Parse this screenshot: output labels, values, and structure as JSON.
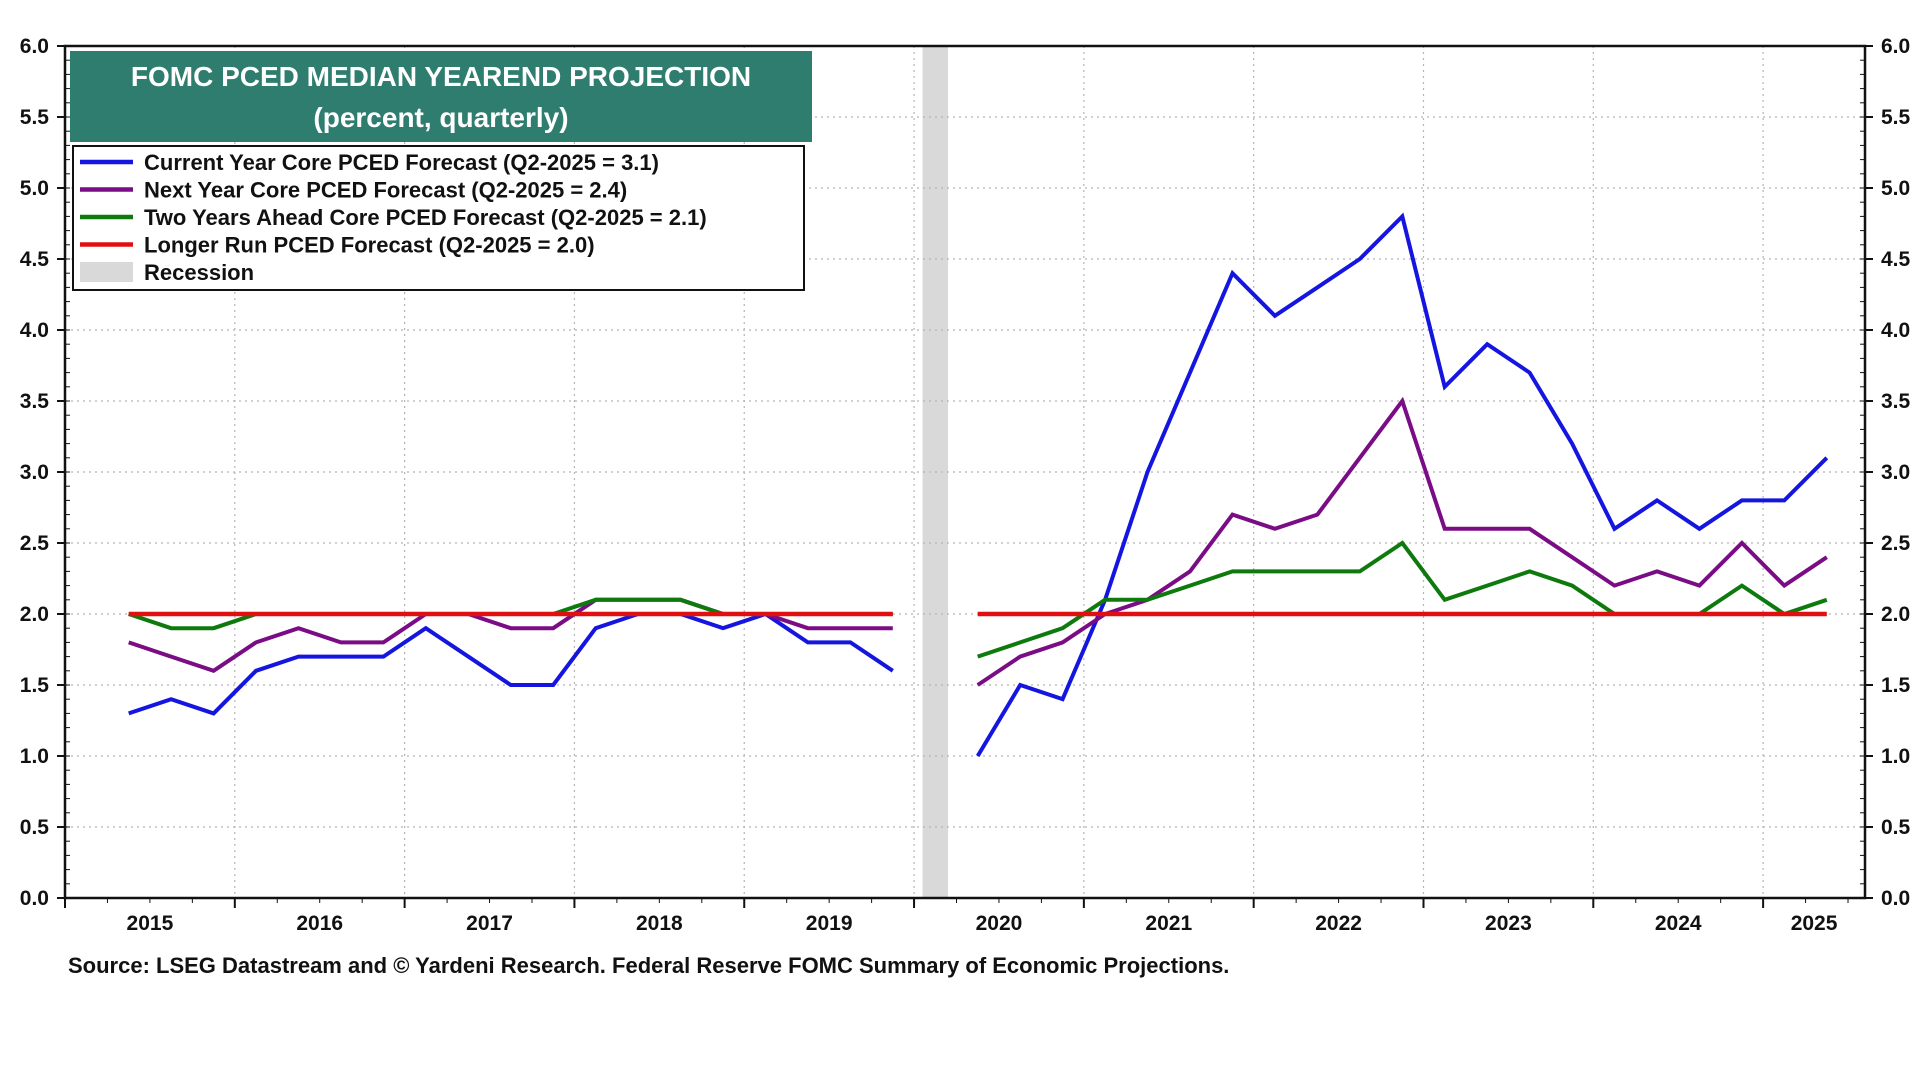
{
  "chart_data": {
    "type": "line",
    "title": "FOMC PCED MEDIAN YEAREND PROJECTION",
    "subtitle": "(percent, quarterly)",
    "ylim": [
      0,
      6
    ],
    "yticks": [
      "0.0",
      "0.5",
      "1.0",
      "1.5",
      "2.0",
      "2.5",
      "3.0",
      "3.5",
      "4.0",
      "4.5",
      "5.0",
      "5.5",
      "6.0"
    ],
    "xlim": [
      2015.0,
      2025.6
    ],
    "x_tick_labels": [
      {
        "year": 2015,
        "label": "2015"
      },
      {
        "year": 2016,
        "label": "2016"
      },
      {
        "year": 2017,
        "label": "2017"
      },
      {
        "year": 2018,
        "label": "2018"
      },
      {
        "year": 2019,
        "label": "2019"
      },
      {
        "year": 2020,
        "label": "2020"
      },
      {
        "year": 2021,
        "label": "2021"
      },
      {
        "year": 2022,
        "label": "2022"
      },
      {
        "year": 2023,
        "label": "2023"
      },
      {
        "year": 2024,
        "label": "2024"
      },
      {
        "year": 2025,
        "label": "2025"
      }
    ],
    "recession": {
      "start": 2020.05,
      "end": 2020.2,
      "label": "Recession",
      "color": "#d9d9d9"
    },
    "series": [
      {
        "name": "Current Year Core PCED Forecast (Q2-2025 = 3.1)",
        "color": "#1515e0",
        "segments": [
          [
            [
              2015.375,
              1.3
            ],
            [
              2015.625,
              1.4
            ],
            [
              2015.875,
              1.3
            ],
            [
              2016.125,
              1.6
            ],
            [
              2016.375,
              1.7
            ],
            [
              2016.625,
              1.7
            ],
            [
              2016.875,
              1.7
            ],
            [
              2017.125,
              1.9
            ],
            [
              2017.375,
              1.7
            ],
            [
              2017.625,
              1.5
            ],
            [
              2017.875,
              1.5
            ],
            [
              2018.125,
              1.9
            ],
            [
              2018.375,
              2.0
            ],
            [
              2018.625,
              2.0
            ],
            [
              2018.875,
              1.9
            ],
            [
              2019.125,
              2.0
            ],
            [
              2019.375,
              1.8
            ],
            [
              2019.625,
              1.8
            ],
            [
              2019.875,
              1.6
            ]
          ],
          [
            [
              2020.375,
              1.0
            ],
            [
              2020.625,
              1.5
            ],
            [
              2020.875,
              1.4
            ],
            [
              2021.125,
              2.1
            ],
            [
              2021.375,
              3.0
            ],
            [
              2021.625,
              3.7
            ],
            [
              2021.875,
              4.4
            ],
            [
              2022.125,
              4.1
            ],
            [
              2022.375,
              4.3
            ],
            [
              2022.625,
              4.5
            ],
            [
              2022.875,
              4.8
            ],
            [
              2023.125,
              3.6
            ],
            [
              2023.375,
              3.9
            ],
            [
              2023.625,
              3.7
            ],
            [
              2023.875,
              3.2
            ],
            [
              2024.125,
              2.6
            ],
            [
              2024.375,
              2.8
            ],
            [
              2024.625,
              2.6
            ],
            [
              2024.875,
              2.8
            ],
            [
              2025.125,
              2.8
            ],
            [
              2025.375,
              3.1
            ]
          ]
        ]
      },
      {
        "name": "Next Year Core PCED Forecast (Q2-2025 = 2.4)",
        "color": "#7a0d85",
        "segments": [
          [
            [
              2015.375,
              1.8
            ],
            [
              2015.625,
              1.7
            ],
            [
              2015.875,
              1.6
            ],
            [
              2016.125,
              1.8
            ],
            [
              2016.375,
              1.9
            ],
            [
              2016.625,
              1.8
            ],
            [
              2016.875,
              1.8
            ],
            [
              2017.125,
              2.0
            ],
            [
              2017.375,
              2.0
            ],
            [
              2017.625,
              1.9
            ],
            [
              2017.875,
              1.9
            ],
            [
              2018.125,
              2.1
            ],
            [
              2018.375,
              2.1
            ],
            [
              2018.625,
              2.1
            ],
            [
              2018.875,
              2.0
            ],
            [
              2019.125,
              2.0
            ],
            [
              2019.375,
              1.9
            ],
            [
              2019.625,
              1.9
            ],
            [
              2019.875,
              1.9
            ]
          ],
          [
            [
              2020.375,
              1.5
            ],
            [
              2020.625,
              1.7
            ],
            [
              2020.875,
              1.8
            ],
            [
              2021.125,
              2.0
            ],
            [
              2021.375,
              2.1
            ],
            [
              2021.625,
              2.3
            ],
            [
              2021.875,
              2.7
            ],
            [
              2022.125,
              2.6
            ],
            [
              2022.375,
              2.7
            ],
            [
              2022.625,
              3.1
            ],
            [
              2022.875,
              3.5
            ],
            [
              2023.125,
              2.6
            ],
            [
              2023.375,
              2.6
            ],
            [
              2023.625,
              2.6
            ],
            [
              2023.875,
              2.4
            ],
            [
              2024.125,
              2.2
            ],
            [
              2024.375,
              2.3
            ],
            [
              2024.625,
              2.2
            ],
            [
              2024.875,
              2.5
            ],
            [
              2025.125,
              2.2
            ],
            [
              2025.375,
              2.4
            ]
          ]
        ]
      },
      {
        "name": "Two Years Ahead Core PCED Forecast (Q2-2025 = 2.1)",
        "color": "#0e7a0e",
        "segments": [
          [
            [
              2015.375,
              2.0
            ],
            [
              2015.625,
              1.9
            ],
            [
              2015.875,
              1.9
            ],
            [
              2016.125,
              2.0
            ],
            [
              2016.375,
              2.0
            ],
            [
              2016.625,
              2.0
            ],
            [
              2016.875,
              2.0
            ],
            [
              2017.125,
              2.0
            ],
            [
              2017.375,
              2.0
            ],
            [
              2017.625,
              2.0
            ],
            [
              2017.875,
              2.0
            ],
            [
              2018.125,
              2.1
            ],
            [
              2018.375,
              2.1
            ],
            [
              2018.625,
              2.1
            ],
            [
              2018.875,
              2.0
            ],
            [
              2019.125,
              2.0
            ],
            [
              2019.375,
              2.0
            ],
            [
              2019.625,
              2.0
            ],
            [
              2019.875,
              2.0
            ]
          ],
          [
            [
              2020.375,
              1.7
            ],
            [
              2020.625,
              1.8
            ],
            [
              2020.875,
              1.9
            ],
            [
              2021.125,
              2.1
            ],
            [
              2021.375,
              2.1
            ],
            [
              2021.625,
              2.2
            ],
            [
              2021.875,
              2.3
            ],
            [
              2022.125,
              2.3
            ],
            [
              2022.375,
              2.3
            ],
            [
              2022.625,
              2.3
            ],
            [
              2022.875,
              2.5
            ],
            [
              2023.125,
              2.1
            ],
            [
              2023.375,
              2.2
            ],
            [
              2023.625,
              2.3
            ],
            [
              2023.875,
              2.2
            ],
            [
              2024.125,
              2.0
            ],
            [
              2024.375,
              2.0
            ],
            [
              2024.625,
              2.0
            ],
            [
              2024.875,
              2.2
            ],
            [
              2025.125,
              2.0
            ],
            [
              2025.375,
              2.1
            ]
          ]
        ]
      },
      {
        "name": "Longer Run PCED Forecast (Q2-2025 = 2.0)",
        "color": "#e01010",
        "segments": [
          [
            [
              2015.375,
              2.0
            ],
            [
              2019.875,
              2.0
            ]
          ],
          [
            [
              2020.375,
              2.0
            ],
            [
              2025.375,
              2.0
            ]
          ]
        ]
      }
    ],
    "legend": [
      {
        "label": "Current Year Core PCED Forecast (Q2-2025 = 3.1)",
        "color": "#1515e0",
        "kind": "line"
      },
      {
        "label": "Next Year Core PCED Forecast (Q2-2025 = 2.4)",
        "color": "#7a0d85",
        "kind": "line"
      },
      {
        "label": "Two Years Ahead Core PCED Forecast (Q2-2025 = 2.1)",
        "color": "#0e7a0e",
        "kind": "line"
      },
      {
        "label": "Longer Run PCED Forecast (Q2-2025 = 2.0)",
        "color": "#e01010",
        "kind": "line"
      },
      {
        "label": "Recession",
        "color": "#d9d9d9",
        "kind": "box"
      }
    ],
    "legend_position": "top-left",
    "grid": true,
    "title_box_color": "#2e7d6e",
    "source": "Source: LSEG Datastream and © Yardeni Research. Federal Reserve FOMC Summary of Economic Projections."
  }
}
